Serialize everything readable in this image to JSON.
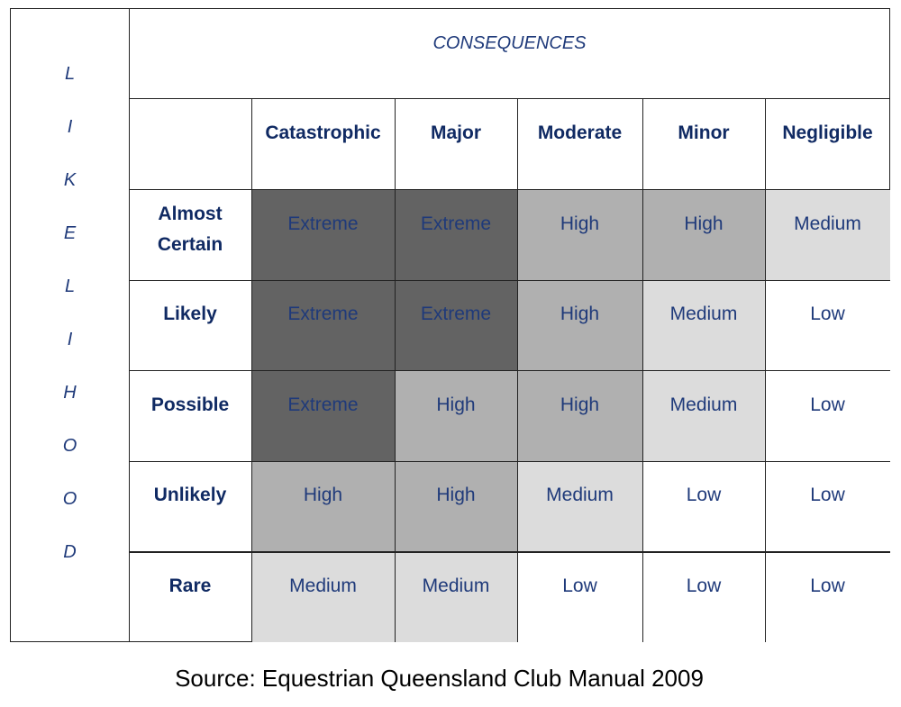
{
  "likelihood_letters": [
    "L",
    "I",
    "K",
    "E",
    "L",
    "I",
    "H",
    "O",
    "O",
    "D"
  ],
  "consequences_title": "CONSEQUENCES",
  "columns": [
    "Catastrophic",
    "Major",
    "Moderate",
    "Minor",
    "Negligible"
  ],
  "rows": [
    {
      "label": "Almost Certain",
      "cells": [
        "Extreme",
        "Extreme",
        "High",
        "High",
        "Medium"
      ]
    },
    {
      "label": "Likely",
      "cells": [
        "Extreme",
        "Extreme",
        "High",
        "Medium",
        "Low"
      ]
    },
    {
      "label": "Possible",
      "cells": [
        "Extreme",
        "High",
        "High",
        "Medium",
        "Low"
      ]
    },
    {
      "label": "Unlikely",
      "cells": [
        "High",
        "High",
        "Medium",
        "Low",
        "Low"
      ]
    },
    {
      "label": "Rare",
      "cells": [
        "Medium",
        "Medium",
        "Low",
        "Low",
        "Low"
      ]
    }
  ],
  "level_colors": {
    "Extreme": "#636363",
    "High": "#b0b0b0",
    "Medium": "#dcdcdc",
    "Low": "#ffffff"
  },
  "source": "Source: Equestrian Queensland Club Manual 2009"
}
